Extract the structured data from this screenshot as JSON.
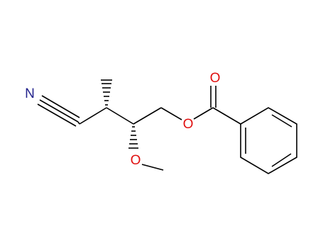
{
  "atoms": [
    {
      "label": "N"
    },
    {
      "label": "O"
    },
    {
      "label": "O"
    },
    {
      "label": "O"
    }
  ]
}
